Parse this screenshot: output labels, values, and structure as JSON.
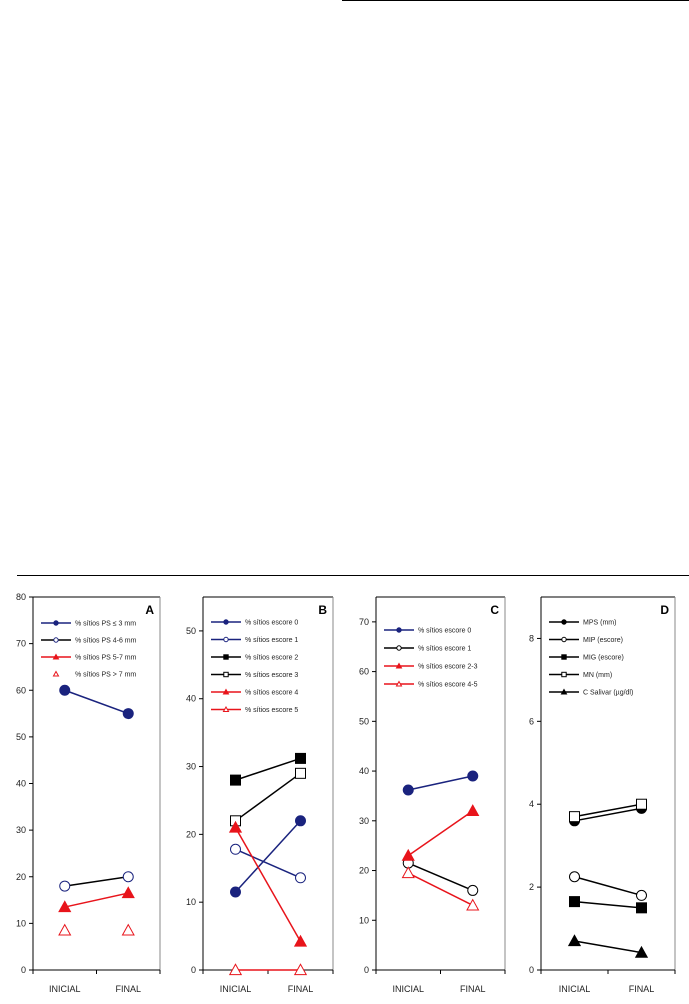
{
  "chart_data": [
    {
      "type": "line",
      "panel": "A",
      "categories": [
        "INICIAL",
        "FINAL"
      ],
      "ylim": [
        0,
        80
      ],
      "yticks": [
        0,
        10,
        20,
        30,
        40,
        50,
        60,
        70,
        80
      ],
      "legend_position": "top-left",
      "series": [
        {
          "name": "% sítios PS ≤ 3 mm",
          "values": [
            60,
            55
          ],
          "color": "#1a237e",
          "marker": "circle",
          "filled": true,
          "line": true
        },
        {
          "name": "% sítios PS 4-6 mm",
          "values": [
            18,
            20
          ],
          "color": "#000000",
          "marker_color": "#1a237e",
          "marker": "circle",
          "filled": false,
          "line": true
        },
        {
          "name": "% sítios PS 5-7 mm",
          "values": [
            13.5,
            16.5
          ],
          "color": "#e8141b",
          "marker": "triangle",
          "filled": true,
          "line": true
        },
        {
          "name": "% sítios PS > 7 mm",
          "values": [
            8.5,
            8.5
          ],
          "color": "#e8141b",
          "marker": "triangle",
          "filled": false,
          "line": false
        }
      ]
    },
    {
      "type": "line",
      "panel": "B",
      "categories": [
        "INICIAL",
        "FINAL"
      ],
      "ylim": [
        0,
        55
      ],
      "yticks": [
        0,
        10,
        20,
        30,
        40,
        50
      ],
      "legend_position": "top-left",
      "series": [
        {
          "name": "% sítios escore 0",
          "values": [
            11.5,
            22
          ],
          "color": "#1a237e",
          "marker": "circle",
          "filled": true,
          "line": true
        },
        {
          "name": "% sítios escore 1",
          "values": [
            17.8,
            13.6
          ],
          "color": "#1a237e",
          "marker": "circle",
          "filled": false,
          "line": true
        },
        {
          "name": "% sítios escore 2",
          "values": [
            28,
            31.2
          ],
          "color": "#000000",
          "marker": "square",
          "filled": true,
          "line": true
        },
        {
          "name": "% sítios escore 3",
          "values": [
            22,
            29
          ],
          "color": "#000000",
          "marker": "square",
          "filled": false,
          "line": true
        },
        {
          "name": "% sítios escore 4",
          "values": [
            21,
            4.2
          ],
          "color": "#e8141b",
          "marker": "triangle",
          "filled": true,
          "line": true
        },
        {
          "name": "% sítios escore 5",
          "values": [
            0,
            0
          ],
          "color": "#e8141b",
          "marker": "triangle",
          "filled": false,
          "line": true
        }
      ]
    },
    {
      "type": "line",
      "panel": "C",
      "categories": [
        "INICIAL",
        "FINAL"
      ],
      "ylim": [
        0,
        75
      ],
      "yticks": [
        0,
        10,
        20,
        30,
        40,
        50,
        60,
        70
      ],
      "legend_position": "top-left",
      "series": [
        {
          "name": "% sítios escore 0",
          "values": [
            36.2,
            39
          ],
          "color": "#1a237e",
          "marker": "circle",
          "filled": true,
          "line": true
        },
        {
          "name": "% sítios escore 1",
          "values": [
            21.5,
            16
          ],
          "color": "#000000",
          "marker": "circle",
          "filled": false,
          "line": true
        },
        {
          "name": "% sítios escore 2-3",
          "values": [
            23,
            32
          ],
          "color": "#e8141b",
          "marker": "triangle",
          "filled": true,
          "line": true
        },
        {
          "name": "% sítios escore 4-5",
          "values": [
            19.5,
            13
          ],
          "color": "#e8141b",
          "marker": "triangle",
          "filled": false,
          "line": true
        }
      ]
    },
    {
      "type": "line",
      "panel": "D",
      "categories": [
        "INICIAL",
        "FINAL"
      ],
      "ylim": [
        0,
        9
      ],
      "yticks": [
        0,
        2,
        4,
        6,
        8
      ],
      "legend_position": "top-left",
      "series": [
        {
          "name": "MPS (mm)",
          "values": [
            3.6,
            3.9
          ],
          "color": "#000000",
          "marker": "circle",
          "filled": true,
          "line": true
        },
        {
          "name": "MIP (escore)",
          "values": [
            2.25,
            1.8
          ],
          "color": "#000000",
          "marker": "circle",
          "filled": false,
          "line": true
        },
        {
          "name": "MIG (escore)",
          "values": [
            1.65,
            1.5
          ],
          "color": "#000000",
          "marker": "square",
          "filled": true,
          "line": true
        },
        {
          "name": "MN (mm)",
          "values": [
            3.7,
            4.0
          ],
          "color": "#000000",
          "marker": "square",
          "filled": false,
          "line": true
        },
        {
          "name": "C Salivar (µg/dl)",
          "values": [
            0.7,
            0.42
          ],
          "color": "#000000",
          "marker": "triangle",
          "filled": true,
          "line": true
        }
      ]
    }
  ]
}
